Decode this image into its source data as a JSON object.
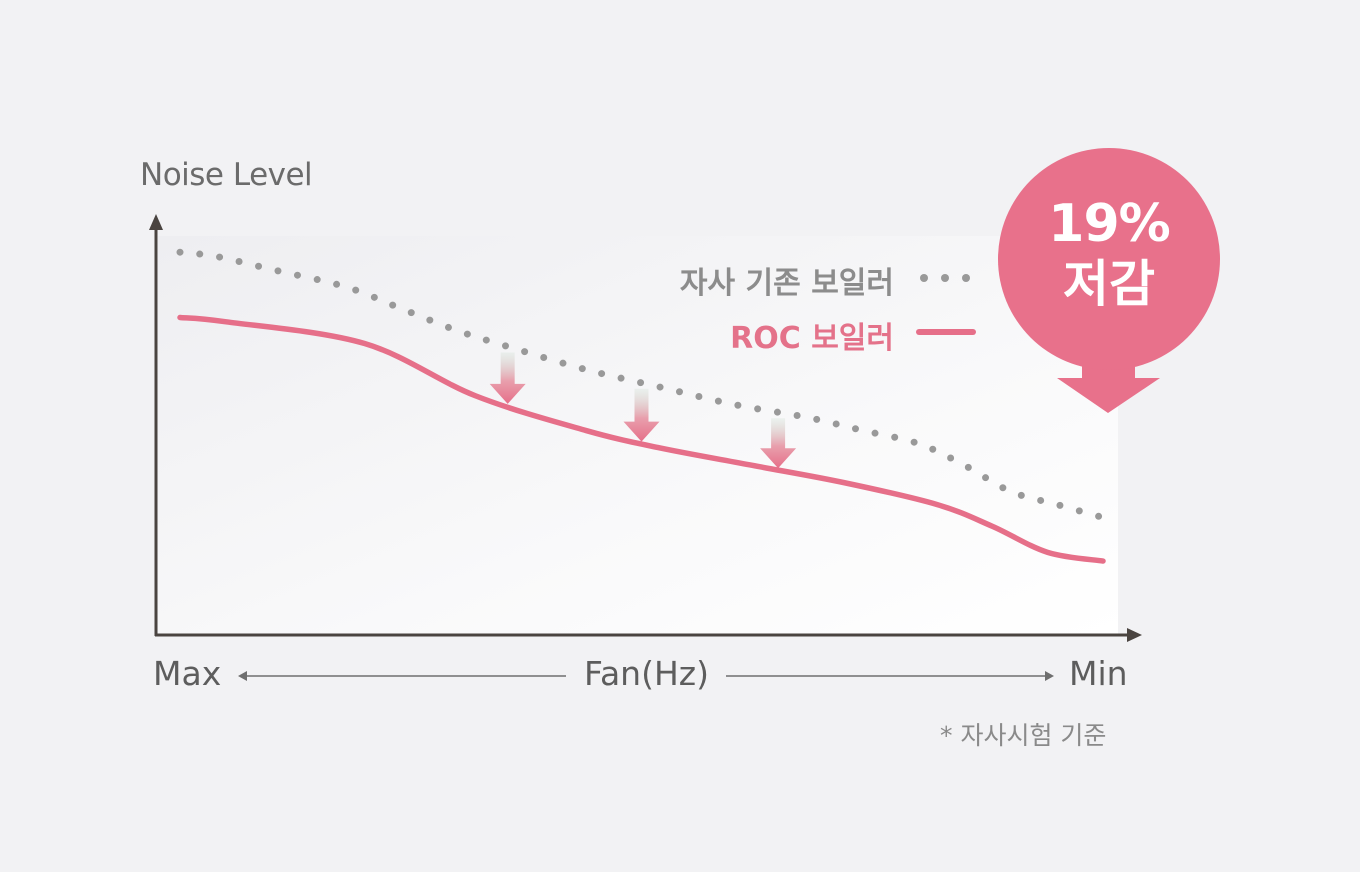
{
  "chart_data": {
    "type": "line",
    "ylabel": "Noise Level",
    "xlabel": "Fan(Hz)",
    "x_range_labels": [
      "Max",
      "Min"
    ],
    "series": [
      {
        "name": "자사 기존 보일러",
        "style": "dotted",
        "color": "#999999",
        "x": [
          0,
          0.04,
          0.1,
          0.18,
          0.24,
          0.3,
          0.36,
          0.44,
          0.52,
          0.6,
          0.68,
          0.74,
          0.8,
          0.85,
          0.9,
          0.95,
          1.0
        ],
        "values": [
          0.88,
          0.87,
          0.84,
          0.8,
          0.75,
          0.7,
          0.66,
          0.61,
          0.57,
          0.53,
          0.5,
          0.47,
          0.44,
          0.39,
          0.33,
          0.3,
          0.27
        ]
      },
      {
        "name": "ROC 보일러",
        "style": "solid",
        "color": "#e66f89",
        "x": [
          0,
          0.05,
          0.2,
          0.32,
          0.44,
          0.52,
          0.62,
          0.72,
          0.82,
          0.88,
          0.94,
          1.0
        ],
        "values": [
          0.73,
          0.72,
          0.67,
          0.55,
          0.47,
          0.43,
          0.39,
          0.35,
          0.3,
          0.25,
          0.19,
          0.17
        ]
      }
    ],
    "reduction_arrows_x": [
      0.355,
      0.5,
      0.648
    ],
    "callout": {
      "value": "19%",
      "label": "저감"
    },
    "footnote": "* 자사시험 기준",
    "colors": {
      "accent": "#e8718b",
      "axis": "#4a4440",
      "baseline": "#999999"
    }
  }
}
